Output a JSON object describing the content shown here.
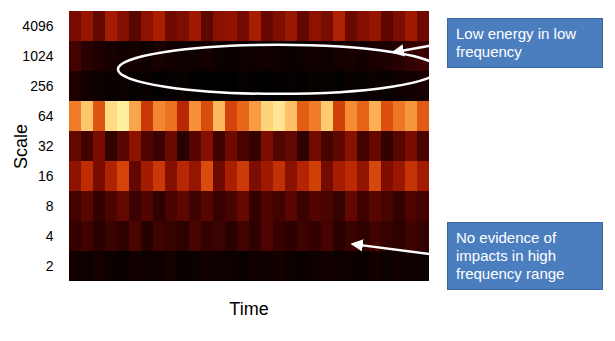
{
  "chart_data": {
    "type": "heatmap",
    "x_label": "Time",
    "y_label": "Scale",
    "tick_labels": "y",
    "categories": [
      "4096",
      "1024",
      "256",
      "64",
      "32",
      "16",
      "8",
      "4",
      "2"
    ],
    "cells": [
      [
        0.35,
        0.42,
        0.3,
        0.45,
        0.38,
        0.28,
        0.4,
        0.47,
        0.33,
        0.36,
        0.44,
        0.29,
        0.39,
        0.41,
        0.34,
        0.46,
        0.31,
        0.37,
        0.43,
        0.3,
        0.4,
        0.35,
        0.48,
        0.32,
        0.38,
        0.42,
        0.29,
        0.36,
        0.44,
        0.33
      ],
      [
        0.22,
        0.15,
        0.12,
        0.1,
        0.08,
        0.09,
        0.07,
        0.1,
        0.08,
        0.06,
        0.07,
        0.09,
        0.06,
        0.05,
        0.07,
        0.06,
        0.08,
        0.07,
        0.05,
        0.06,
        0.08,
        0.07,
        0.09,
        0.1,
        0.08,
        0.11,
        0.12,
        0.14,
        0.18,
        0.2
      ],
      [
        0.12,
        0.08,
        0.06,
        0.05,
        0.06,
        0.04,
        0.05,
        0.03,
        0.04,
        0.05,
        0.03,
        0.02,
        0.03,
        0.02,
        0.04,
        0.03,
        0.02,
        0.03,
        0.04,
        0.03,
        0.05,
        0.04,
        0.03,
        0.05,
        0.04,
        0.06,
        0.05,
        0.07,
        0.08,
        0.1
      ],
      [
        0.7,
        0.85,
        0.62,
        0.9,
        0.95,
        0.78,
        0.55,
        0.72,
        0.68,
        0.5,
        0.74,
        0.6,
        0.82,
        0.58,
        0.66,
        0.76,
        0.88,
        0.92,
        0.84,
        0.64,
        0.7,
        0.86,
        0.57,
        0.73,
        0.65,
        0.8,
        0.61,
        0.69,
        0.75,
        0.63
      ],
      [
        0.3,
        0.22,
        0.35,
        0.18,
        0.28,
        0.4,
        0.25,
        0.2,
        0.32,
        0.15,
        0.27,
        0.38,
        0.21,
        0.33,
        0.24,
        0.19,
        0.36,
        0.26,
        0.3,
        0.17,
        0.34,
        0.23,
        0.29,
        0.39,
        0.22,
        0.31,
        0.18,
        0.28,
        0.35,
        0.24
      ],
      [
        0.4,
        0.52,
        0.35,
        0.48,
        0.58,
        0.3,
        0.45,
        0.55,
        0.38,
        0.5,
        0.42,
        0.6,
        0.33,
        0.47,
        0.56,
        0.36,
        0.44,
        0.53,
        0.39,
        0.49,
        0.57,
        0.34,
        0.46,
        0.51,
        0.41,
        0.59,
        0.37,
        0.43,
        0.54,
        0.45
      ],
      [
        0.22,
        0.28,
        0.18,
        0.25,
        0.3,
        0.2,
        0.26,
        0.17,
        0.24,
        0.29,
        0.21,
        0.27,
        0.19,
        0.23,
        0.31,
        0.18,
        0.25,
        0.22,
        0.28,
        0.2,
        0.26,
        0.24,
        0.19,
        0.3,
        0.21,
        0.27,
        0.23,
        0.18,
        0.25,
        0.22
      ],
      [
        0.18,
        0.22,
        0.15,
        0.2,
        0.17,
        0.24,
        0.14,
        0.21,
        0.19,
        0.16,
        0.23,
        0.18,
        0.2,
        0.15,
        0.22,
        0.17,
        0.25,
        0.19,
        0.16,
        0.21,
        0.18,
        0.23,
        0.15,
        0.2,
        0.17,
        0.22,
        0.19,
        0.16,
        0.21,
        0.18
      ],
      [
        0.08,
        0.06,
        0.09,
        0.07,
        0.05,
        0.08,
        0.06,
        0.07,
        0.09,
        0.05,
        0.06,
        0.08,
        0.07,
        0.06,
        0.05,
        0.08,
        0.07,
        0.09,
        0.06,
        0.05,
        0.07,
        0.08,
        0.06,
        0.07,
        0.05,
        0.09,
        0.06,
        0.08,
        0.07,
        0.06
      ]
    ],
    "annotations": [
      "Low energy in low frequency",
      "No evidence of impacts in high frequency range"
    ]
  }
}
